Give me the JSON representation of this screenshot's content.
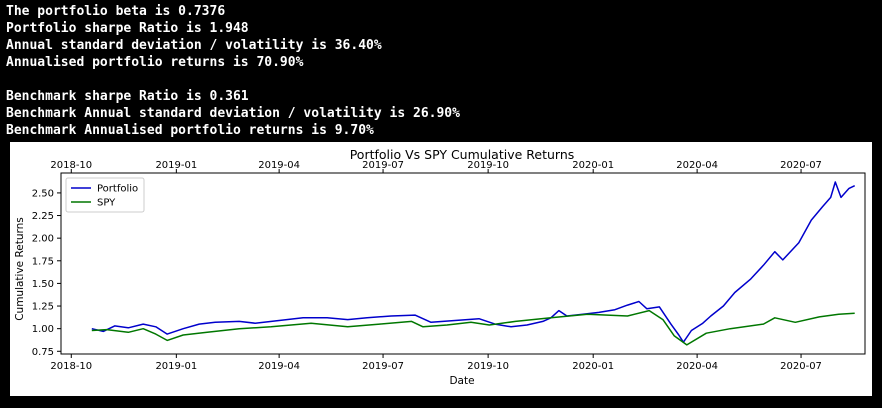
{
  "console": {
    "lines": [
      "The portfolio beta is 0.7376",
      "Portfolio sharpe Ratio is 1.948",
      "Annual standard deviation / volatility is 36.40%",
      "Annualised portfolio returns is 70.90%",
      "",
      "Benchmark sharpe Ratio is 0.361",
      "Benchmark Annual standard deviation / volatility is 26.90%",
      "Benchmark Annualised portfolio returns is 9.70%"
    ]
  },
  "chart_data": {
    "type": "line",
    "title": "Portfolio Vs SPY Cumulative Returns",
    "xlabel": "Date",
    "ylabel": "Cumulative Returns",
    "xlim": [
      "2018-09-22",
      "2020-08-26"
    ],
    "ylim": [
      0.72,
      2.72
    ],
    "x_ticks": [
      "2018-10",
      "2019-01",
      "2019-04",
      "2019-07",
      "2019-10",
      "2020-01",
      "2020-04",
      "2020-07"
    ],
    "x_ticks_top": [
      "2018-10",
      "2019-01",
      "2019-04",
      "2019-07",
      "2019-10",
      "2020-01",
      "2020-04",
      "2020-07"
    ],
    "y_ticks": [
      "0.75",
      "1.00",
      "1.25",
      "1.50",
      "1.75",
      "2.00",
      "2.25",
      "2.50"
    ],
    "y_tick_values": [
      0.75,
      1.0,
      1.25,
      1.5,
      1.75,
      2.0,
      2.25,
      2.5
    ],
    "grid": false,
    "legend_position": "upper-left",
    "series": [
      {
        "name": "Portfolio",
        "color": "#0000cc",
        "points": [
          [
            "2018-10-19",
            1.0
          ],
          [
            "2018-10-29",
            0.97
          ],
          [
            "2018-11-08",
            1.03
          ],
          [
            "2018-11-20",
            1.01
          ],
          [
            "2018-12-03",
            1.05
          ],
          [
            "2018-12-14",
            1.02
          ],
          [
            "2018-12-24",
            0.94
          ],
          [
            "2019-01-07",
            1.0
          ],
          [
            "2019-01-21",
            1.05
          ],
          [
            "2019-02-04",
            1.07
          ],
          [
            "2019-02-25",
            1.08
          ],
          [
            "2019-03-11",
            1.06
          ],
          [
            "2019-04-01",
            1.09
          ],
          [
            "2019-04-22",
            1.12
          ],
          [
            "2019-05-13",
            1.12
          ],
          [
            "2019-05-31",
            1.1
          ],
          [
            "2019-06-17",
            1.12
          ],
          [
            "2019-07-08",
            1.14
          ],
          [
            "2019-07-29",
            1.15
          ],
          [
            "2019-08-12",
            1.07
          ],
          [
            "2019-09-02",
            1.09
          ],
          [
            "2019-09-23",
            1.11
          ],
          [
            "2019-10-07",
            1.05
          ],
          [
            "2019-10-21",
            1.02
          ],
          [
            "2019-11-04",
            1.04
          ],
          [
            "2019-11-18",
            1.08
          ],
          [
            "2019-11-25",
            1.12
          ],
          [
            "2019-12-02",
            1.2
          ],
          [
            "2019-12-09",
            1.14
          ],
          [
            "2019-12-23",
            1.16
          ],
          [
            "2020-01-06",
            1.18
          ],
          [
            "2020-01-20",
            1.21
          ],
          [
            "2020-01-31",
            1.26
          ],
          [
            "2020-02-10",
            1.3
          ],
          [
            "2020-02-17",
            1.22
          ],
          [
            "2020-02-28",
            1.24
          ],
          [
            "2020-03-09",
            1.05
          ],
          [
            "2020-03-16",
            0.93
          ],
          [
            "2020-03-20",
            0.85
          ],
          [
            "2020-03-27",
            0.98
          ],
          [
            "2020-04-06",
            1.06
          ],
          [
            "2020-04-13",
            1.14
          ],
          [
            "2020-04-24",
            1.25
          ],
          [
            "2020-05-04",
            1.4
          ],
          [
            "2020-05-18",
            1.55
          ],
          [
            "2020-05-29",
            1.7
          ],
          [
            "2020-06-08",
            1.85
          ],
          [
            "2020-06-15",
            1.76
          ],
          [
            "2020-06-29",
            1.95
          ],
          [
            "2020-07-10",
            2.2
          ],
          [
            "2020-07-20",
            2.35
          ],
          [
            "2020-07-27",
            2.45
          ],
          [
            "2020-07-31",
            2.62
          ],
          [
            "2020-08-05",
            2.45
          ],
          [
            "2020-08-12",
            2.55
          ],
          [
            "2020-08-17",
            2.58
          ]
        ]
      },
      {
        "name": "SPY",
        "color": "#007700",
        "points": [
          [
            "2018-10-19",
            0.98
          ],
          [
            "2018-11-01",
            0.99
          ],
          [
            "2018-11-20",
            0.96
          ],
          [
            "2018-12-03",
            1.0
          ],
          [
            "2018-12-14",
            0.94
          ],
          [
            "2018-12-24",
            0.87
          ],
          [
            "2019-01-07",
            0.93
          ],
          [
            "2019-01-28",
            0.96
          ],
          [
            "2019-02-25",
            1.0
          ],
          [
            "2019-03-25",
            1.02
          ],
          [
            "2019-04-29",
            1.06
          ],
          [
            "2019-05-31",
            1.02
          ],
          [
            "2019-06-28",
            1.05
          ],
          [
            "2019-07-26",
            1.08
          ],
          [
            "2019-08-05",
            1.02
          ],
          [
            "2019-08-26",
            1.04
          ],
          [
            "2019-09-16",
            1.07
          ],
          [
            "2019-10-02",
            1.04
          ],
          [
            "2019-10-25",
            1.08
          ],
          [
            "2019-11-25",
            1.12
          ],
          [
            "2019-12-27",
            1.16
          ],
          [
            "2020-01-31",
            1.14
          ],
          [
            "2020-02-19",
            1.2
          ],
          [
            "2020-03-02",
            1.1
          ],
          [
            "2020-03-12",
            0.92
          ],
          [
            "2020-03-23",
            0.82
          ],
          [
            "2020-04-09",
            0.95
          ],
          [
            "2020-04-30",
            1.0
          ],
          [
            "2020-05-29",
            1.05
          ],
          [
            "2020-06-08",
            1.12
          ],
          [
            "2020-06-26",
            1.07
          ],
          [
            "2020-07-17",
            1.13
          ],
          [
            "2020-08-03",
            1.16
          ],
          [
            "2020-08-17",
            1.17
          ]
        ]
      }
    ]
  }
}
